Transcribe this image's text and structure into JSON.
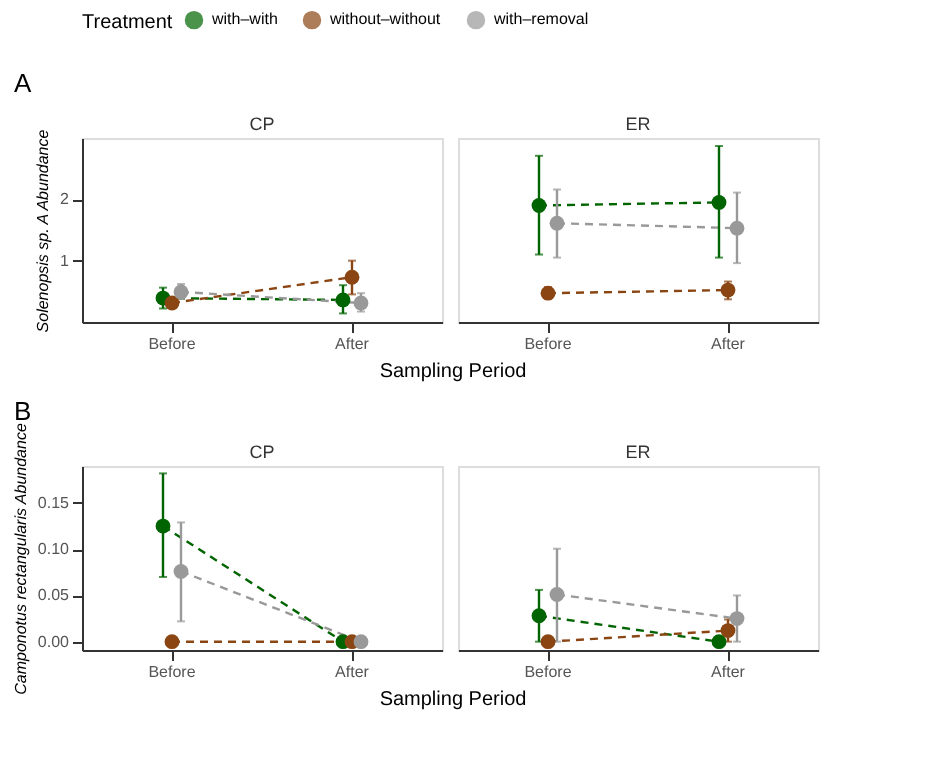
{
  "chart_data": [
    {
      "type": "line",
      "title": "CP",
      "annotations": [
        "A"
      ],
      "ylabel": "Solenopsis sp. A Abundance",
      "xlabel": "Sampling Period",
      "legend_title": "Treatment",
      "legend": "top",
      "marker": "circle",
      "line_style": "dashed",
      "grid": false,
      "categories": [
        "Before",
        "After"
      ],
      "ylim": [
        0,
        3
      ],
      "yticks": [
        1,
        2
      ],
      "series": [
        {
          "name": "with–with",
          "color": "#006400",
          "values": [
            0.39,
            0.36
          ],
          "errors": [
            [
              0.22,
              0.56
            ],
            [
              0.14,
              0.6
            ]
          ]
        },
        {
          "name": "without–without",
          "color": "#8b4513",
          "values": [
            0.31,
            0.73
          ],
          "errors": [
            [
              0.27,
              0.36
            ],
            [
              0.45,
              1.0
            ]
          ]
        },
        {
          "name": "with–removal",
          "color": "#999999",
          "values": [
            0.49,
            0.31
          ],
          "errors": [
            [
              0.38,
              0.62
            ],
            [
              0.17,
              0.47
            ]
          ]
        }
      ]
    },
    {
      "type": "line",
      "title": "ER",
      "marker": "circle",
      "line_style": "dashed",
      "grid": false,
      "tick_labels": "x",
      "categories": [
        "Before",
        "After"
      ],
      "ylim": [
        0,
        3
      ],
      "series": [
        {
          "color": "#006400",
          "values": [
            1.9,
            1.95
          ],
          "errors": [
            [
              1.1,
              2.71
            ],
            [
              1.05,
              2.87
            ]
          ]
        },
        {
          "color": "#8b4513",
          "values": [
            0.47,
            0.52
          ],
          "errors": [
            [
              0.38,
              0.57
            ],
            [
              0.37,
              0.66
            ]
          ]
        },
        {
          "color": "#999999",
          "values": [
            1.61,
            1.53
          ],
          "errors": [
            [
              1.05,
              2.16
            ],
            [
              0.96,
              2.11
            ]
          ]
        }
      ]
    },
    {
      "type": "line",
      "title": "CP",
      "annotations": [
        "B"
      ],
      "ylabel": "Camponotus rectangularis Abundance",
      "xlabel": "Sampling Period",
      "marker": "circle",
      "line_style": "dashed",
      "grid": false,
      "categories": [
        "Before",
        "After"
      ],
      "ylim": [
        -0.009,
        0.19
      ],
      "yticks": [
        {
          "value": 0,
          "label": "0.00"
        },
        {
          "value": 0.05,
          "label": "0.05"
        },
        {
          "value": 0.1,
          "label": "0.10"
        },
        {
          "value": 0.15,
          "label": "0.15"
        }
      ],
      "series": [
        {
          "color": "#006400",
          "values": [
            0.125,
            0
          ],
          "errors": [
            [
              0.07,
              0.182
            ],
            null
          ]
        },
        {
          "color": "#8b4513",
          "values": [
            0,
            0
          ]
        },
        {
          "color": "#999999",
          "values": [
            0.076,
            0
          ],
          "errors": [
            [
              0.022,
              0.129
            ],
            null
          ]
        }
      ]
    },
    {
      "type": "line",
      "title": "ER",
      "marker": "circle",
      "line_style": "dashed",
      "grid": false,
      "tick_labels": "x",
      "categories": [
        "Before",
        "After"
      ],
      "ylim": [
        -0.009,
        0.19
      ],
      "series": [
        {
          "color": "#006400",
          "values": [
            0.028,
            0
          ],
          "errors": [
            [
              0,
              0.056
            ],
            null
          ]
        },
        {
          "color": "#8b4513",
          "values": [
            0,
            0.012
          ],
          "errors": [
            null,
            [
              0,
              0.024
            ]
          ]
        },
        {
          "color": "#999999",
          "values": [
            0.051,
            0.025
          ],
          "errors": [
            [
              0,
              0.1005
            ],
            [
              0,
              0.05
            ]
          ]
        }
      ]
    }
  ]
}
